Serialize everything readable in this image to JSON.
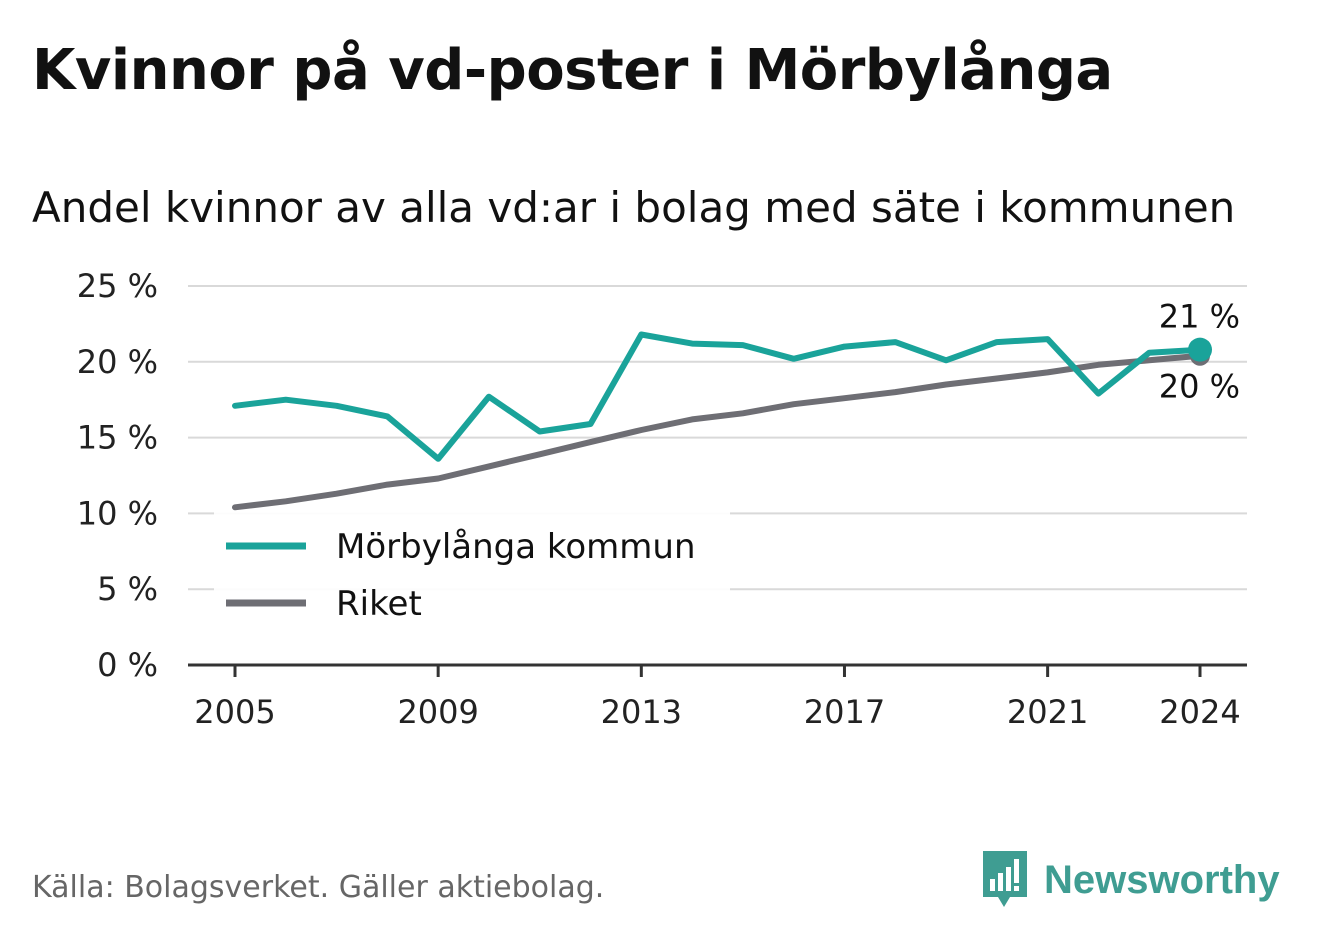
{
  "title": "Kvinnor på vd-poster i Mörbylånga",
  "subtitle": "Andel kvinnor av alla vd:ar i bolag med säte i kommunen",
  "source": "Källa: Bolagsverket. Gäller aktiebolag.",
  "brand": {
    "name": "Newsworthy",
    "icon": "newsworthy-logo-icon",
    "color": "#3f9d92"
  },
  "chart_data": {
    "type": "line",
    "x": [
      2005,
      2006,
      2007,
      2008,
      2009,
      2010,
      2011,
      2012,
      2013,
      2014,
      2015,
      2016,
      2017,
      2018,
      2019,
      2020,
      2021,
      2022,
      2023,
      2024
    ],
    "series": [
      {
        "name": "Mörbylånga kommun",
        "color": "#1aa39a",
        "values": [
          17.1,
          17.5,
          17.1,
          16.4,
          13.6,
          17.7,
          15.4,
          15.9,
          21.8,
          21.2,
          21.1,
          20.2,
          21.0,
          21.3,
          20.1,
          21.3,
          21.5,
          17.9,
          20.6,
          20.8
        ]
      },
      {
        "name": "Riket",
        "color": "#6e6e74",
        "values": [
          10.4,
          10.8,
          11.3,
          11.9,
          12.3,
          13.1,
          13.9,
          14.7,
          15.5,
          16.2,
          16.6,
          17.2,
          17.6,
          18.0,
          18.5,
          18.9,
          19.3,
          19.8,
          20.1,
          20.4
        ]
      }
    ],
    "end_labels": [
      "21 %",
      "20 %"
    ],
    "x_ticks": [
      "2005",
      "2009",
      "2013",
      "2017",
      "2021",
      "2024"
    ],
    "y_ticks": [
      "0 %",
      "5 %",
      "10 %",
      "15 %",
      "20 %",
      "25 %"
    ],
    "ylim": [
      0,
      25
    ],
    "xlim": [
      2005,
      2024
    ],
    "grid": true,
    "legend_position": "bottom-left"
  }
}
